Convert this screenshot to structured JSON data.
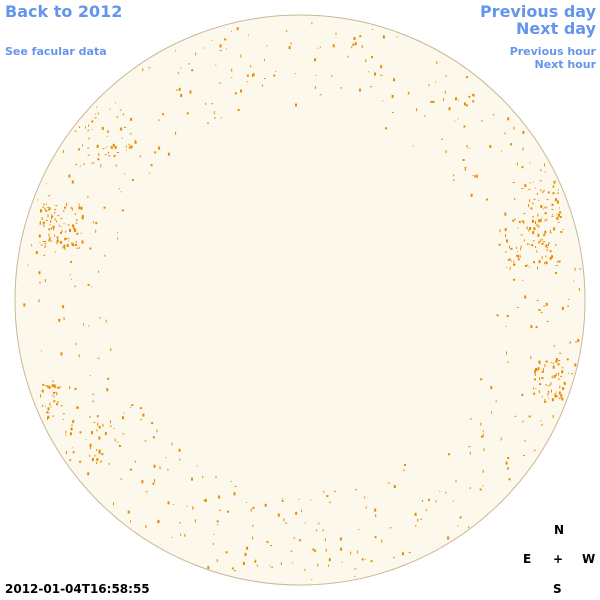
{
  "nav": {
    "back": "Back to 2012",
    "facular_data": "See facular data",
    "previous_day": "Previous day",
    "next_day": "Next day",
    "previous_hour": "Previous hour",
    "next_hour": "Next hour"
  },
  "timestamp": "2012-01-04T16:58:55",
  "compass": {
    "north": "N",
    "east": "E",
    "center": "+",
    "west": "W",
    "south": "S"
  }
}
